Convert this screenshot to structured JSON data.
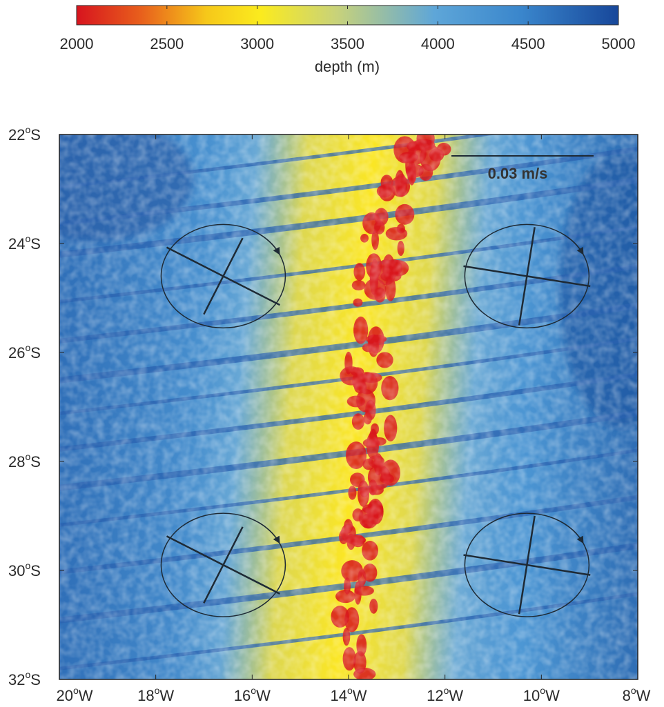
{
  "colorbar": {
    "label": "depth (m)",
    "ticks": [
      "2000",
      "2500",
      "3000",
      "3500",
      "4000",
      "4500",
      "5000"
    ],
    "range": [
      2000,
      5000
    ],
    "colors": [
      "#d7141e",
      "#e8601c",
      "#f6c81a",
      "#fbeb1e",
      "#c8d27a",
      "#5ea6d8",
      "#3a86cc",
      "#17479a"
    ]
  },
  "map": {
    "lat_labels": [
      {
        "deg": "22",
        "hem": "S"
      },
      {
        "deg": "24",
        "hem": "S"
      },
      {
        "deg": "26",
        "hem": "S"
      },
      {
        "deg": "28",
        "hem": "S"
      },
      {
        "deg": "30",
        "hem": "S"
      },
      {
        "deg": "32",
        "hem": "S"
      }
    ],
    "lon_labels": [
      {
        "deg": "20",
        "hem": "W"
      },
      {
        "deg": "18",
        "hem": "W"
      },
      {
        "deg": "16",
        "hem": "W"
      },
      {
        "deg": "14",
        "hem": "W"
      },
      {
        "deg": "12",
        "hem": "W"
      },
      {
        "deg": "10",
        "hem": "W"
      },
      {
        "deg": "8",
        "hem": "W"
      }
    ],
    "degree_symbol": "o",
    "lat_range": [
      -22,
      -32
    ],
    "lon_range": [
      -20,
      -8
    ],
    "ridge_color": "#d8161c",
    "ocean_color": "#3f8fd2"
  },
  "scale_bar": {
    "label": "0.03 m/s"
  },
  "ellipses": [
    {
      "name": "ellipse-northwest",
      "lon": -16.6,
      "lat": -24.6
    },
    {
      "name": "ellipse-northeast",
      "lon": -10.3,
      "lat": -24.6
    },
    {
      "name": "ellipse-southwest",
      "lon": -16.6,
      "lat": -29.9
    },
    {
      "name": "ellipse-southeast",
      "lon": -10.3,
      "lat": -29.9
    }
  ]
}
